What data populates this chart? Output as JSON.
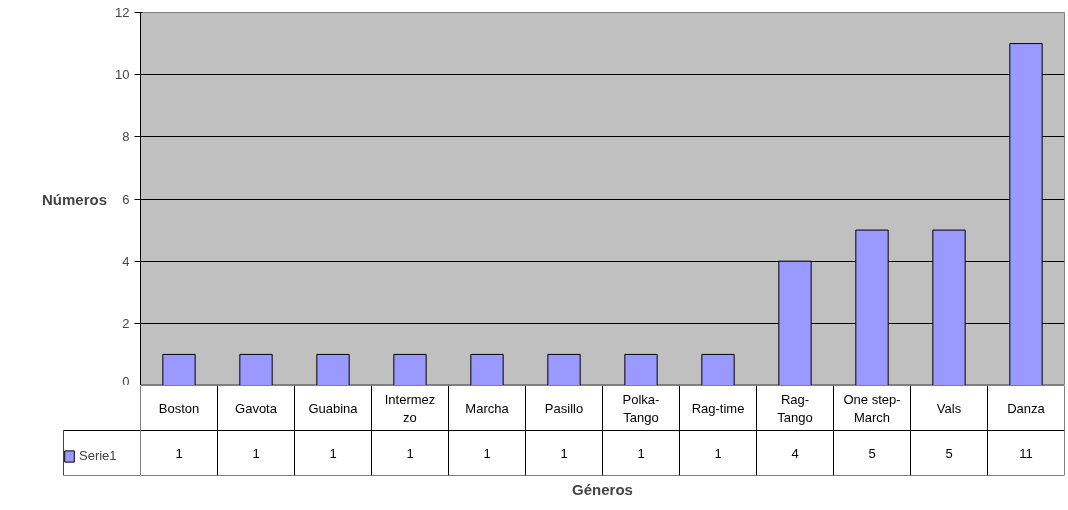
{
  "chart_data": {
    "type": "bar",
    "xlabel": "Géneros",
    "ylabel": "Números",
    "categories": [
      "Boston",
      "Gavota",
      "Guabina",
      "Intermez\nzo",
      "Marcha",
      "Pasillo",
      "Polka-\nTango",
      "Rag-time",
      "Rag-\nTango",
      "One step-\nMarch",
      "Vals",
      "Danza"
    ],
    "series": [
      {
        "name": "Serie1",
        "color": "#9999ff",
        "values": [
          1,
          1,
          1,
          1,
          1,
          1,
          1,
          1,
          4,
          5,
          5,
          11
        ]
      }
    ],
    "ylim": [
      0,
      12
    ],
    "yticks": [
      0,
      2,
      4,
      6,
      8,
      10,
      12
    ],
    "grid": "y",
    "legend": "bottom left",
    "data_labels": true
  }
}
